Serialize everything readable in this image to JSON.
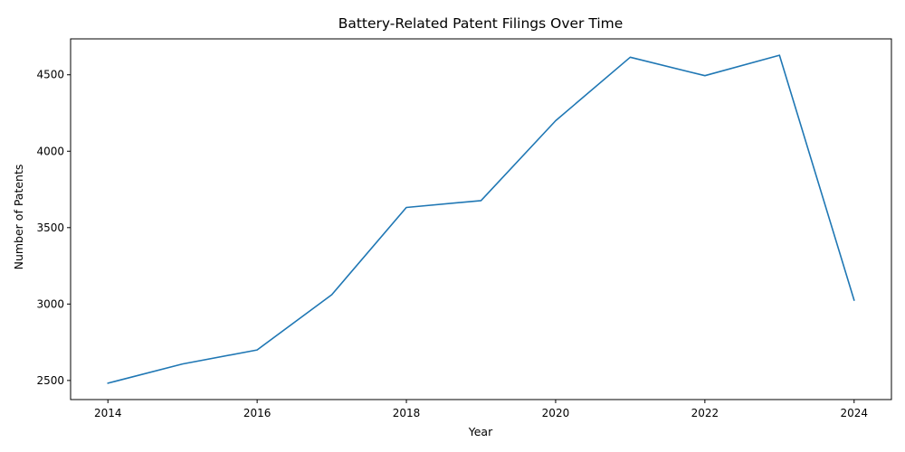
{
  "chart_data": {
    "type": "line",
    "title": "Battery-Related Patent Filings Over Time",
    "xlabel": "Year",
    "ylabel": "Number of Patents",
    "x": [
      2014,
      2015,
      2016,
      2017,
      2018,
      2019,
      2020,
      2021,
      2022,
      2023,
      2024
    ],
    "series": [
      {
        "values": [
          2482,
          2608,
          2700,
          3061,
          3632,
          3677,
          4200,
          4615,
          4494,
          4628,
          3025
        ]
      }
    ],
    "xlim": [
      2013.5,
      2024.5
    ],
    "ylim": [
      2375,
      4735
    ],
    "xticks": [
      "2014",
      "2016",
      "2018",
      "2020",
      "2022",
      "2024"
    ],
    "yticks": [
      "2500",
      "3000",
      "3500",
      "4000",
      "4500"
    ],
    "grid": false,
    "line_color": "#1f77b4"
  }
}
